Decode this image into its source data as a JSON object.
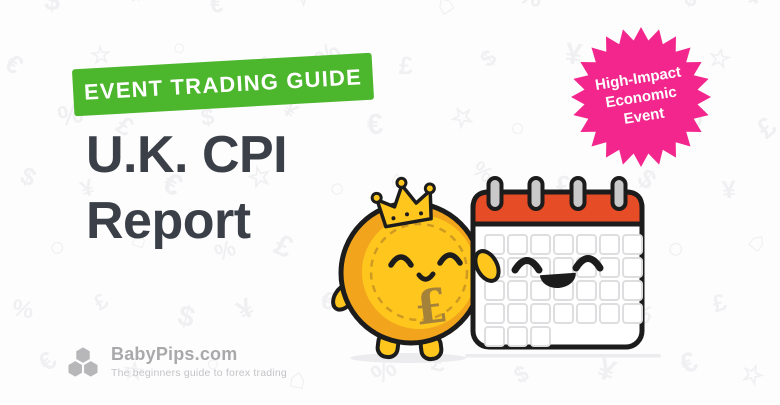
{
  "banner": {
    "label": "EVENT TRADING GUIDE",
    "bg_color": "#4cb62c",
    "text_color": "#ffffff"
  },
  "title": {
    "line1": "U.K. CPI",
    "line2": "Report",
    "color": "#3a3f48"
  },
  "badge": {
    "lines": [
      "High-Impact",
      "Economic",
      "Event"
    ],
    "bg_color": "#f2268c",
    "text_color": "#ffffff"
  },
  "illustration": {
    "coin_currency_symbol": "£",
    "coin_color": "#ffc71d",
    "coin_rim_color": "#f2a51c",
    "coin_dash_color": "#cf9a22",
    "pound_symbol_color": "#a5823a",
    "calendar_header_color": "#e64c25",
    "ring_color": "#c9c9c9",
    "grid_line_color": "#dedee0",
    "outline_color": "#1c1c1c",
    "shadow_color": "#ececee"
  },
  "logo": {
    "name": "BabyPips.com",
    "tagline": "The beginners guide to forex trading",
    "mark_color": "#b7b7b9",
    "name_color": "#a9a9ab",
    "tagline_color": "#c4c4c7"
  },
  "background_pattern": {
    "glyphs": [
      "£",
      "$",
      "¥",
      "€",
      "☆",
      "○",
      "⌂",
      "%"
    ],
    "color": "#f0f0f2"
  }
}
